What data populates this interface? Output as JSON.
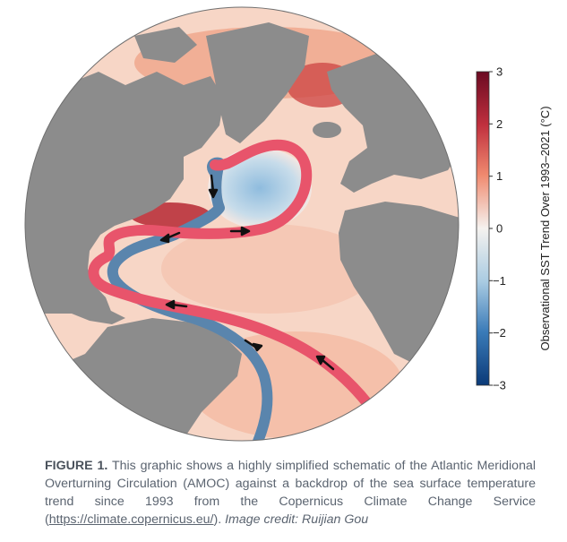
{
  "figure": {
    "caption_label": "FIGURE 1.",
    "caption_text_1": "This graphic shows a highly simplified schematic of the Atlantic Meridional Overturning Circulation (AMOC) against a backdrop of the sea surface temperature trend since 1993 from the Copernicus Climate Change Service (",
    "caption_link": "https://climate.copernicus.eu/",
    "caption_text_2": ").",
    "caption_credit": "Image credit: Ruijian Gou"
  },
  "colorbar": {
    "label": "Observational SST Trend Over 1993–2021 (°C)",
    "ticks": [
      "3",
      "2",
      "1",
      "0",
      "−1",
      "−2",
      "−3"
    ],
    "range": [
      -3,
      3
    ],
    "colors": {
      "max": "#6b0a22",
      "warm": "#d6434a",
      "light_warm": "#f6bfa5",
      "neutral": "#f5f2ef",
      "light_cool": "#a9cbe2",
      "cool": "#3a7bb8",
      "min": "#0b3a78"
    }
  },
  "map": {
    "land_color": "#8c8c8c",
    "ocean_base_color": "#f7d6c6",
    "warm_path_color": "#e8546b",
    "cold_path_color": "#5a85ad",
    "arrow_color": "#111111"
  }
}
